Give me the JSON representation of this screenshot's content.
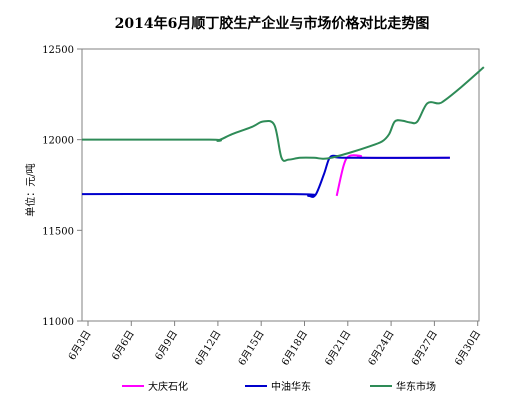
{
  "chart_data": {
    "type": "line",
    "title": "2014年6月顺丁胶生产企业与市场价格对比走势图",
    "ylabel": "单位：元/吨",
    "xlabel": "",
    "ylim": [
      11000,
      12500
    ],
    "yticks": [
      11000,
      11500,
      12000,
      12500
    ],
    "x": [
      "6月3日",
      "6月6日",
      "6月9日",
      "6月12日",
      "6月15日",
      "6月18日",
      "6月21日",
      "6月24日",
      "6月27日",
      "6月30日"
    ],
    "series": [
      {
        "name": "大庆石化",
        "color": "#ff00ff",
        "points": [
          [
            0,
            11700
          ],
          [
            8.0,
            11700
          ],
          [
            8.6,
            11685
          ],
          [
            9.0,
            11690
          ],
          [
            9.25,
            11860
          ],
          [
            9.45,
            11910
          ],
          [
            9.85,
            11910
          ],
          [
            10.0,
            11900
          ],
          [
            13.0,
            11900
          ]
        ],
        "visible_segment_start": 9.0
      },
      {
        "name": "中油华东",
        "color": "#0000cc",
        "points": [
          [
            0,
            11700
          ],
          [
            7.5,
            11700
          ],
          [
            8.0,
            11690
          ],
          [
            8.25,
            11695
          ],
          [
            8.55,
            11810
          ],
          [
            8.75,
            11900
          ],
          [
            9.0,
            11910
          ],
          [
            9.3,
            11900
          ],
          [
            13.0,
            11900
          ]
        ]
      },
      {
        "name": "华东市场",
        "color": "#2e8b57",
        "points": [
          [
            0,
            12000
          ],
          [
            4.5,
            12000
          ],
          [
            4.8,
            11995
          ],
          [
            5.3,
            12030
          ],
          [
            6.0,
            12070
          ],
          [
            6.4,
            12100
          ],
          [
            6.8,
            12080
          ],
          [
            7.05,
            11900
          ],
          [
            7.3,
            11890
          ],
          [
            7.7,
            11900
          ],
          [
            8.2,
            11900
          ],
          [
            8.5,
            11895
          ],
          [
            8.8,
            11900
          ],
          [
            9.5,
            11930
          ],
          [
            10.1,
            11960
          ],
          [
            10.6,
            11990
          ],
          [
            10.85,
            12030
          ],
          [
            11.05,
            12100
          ],
          [
            11.3,
            12105
          ],
          [
            11.6,
            12095
          ],
          [
            11.85,
            12100
          ],
          [
            12.2,
            12200
          ],
          [
            12.6,
            12200
          ],
          [
            12.8,
            12215
          ],
          [
            13.4,
            12290
          ],
          [
            14.2,
            12400
          ]
        ]
      }
    ],
    "x_units": "index of tick positions, 1 unit = 3 days",
    "legend_position": "bottom",
    "grid": false
  }
}
